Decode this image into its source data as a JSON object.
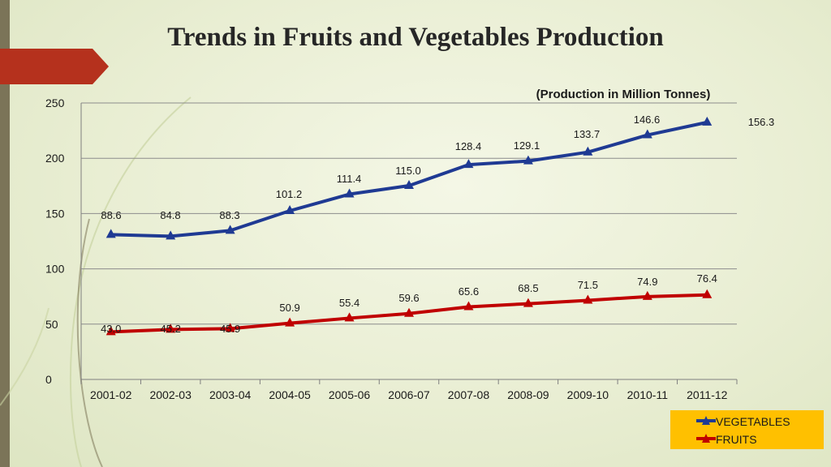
{
  "slide": {
    "title": "Trends in Fruits and Vegetables Production"
  },
  "colors": {
    "accent_tab": "#b5311d",
    "vegetables": "#1f3a93",
    "fruits": "#c00000",
    "legend_bg": "#ffc000"
  },
  "chart_data": {
    "type": "line",
    "title": "",
    "subtitle": "(Production in Million Tonnes)",
    "xlabel": "",
    "ylabel": "",
    "categories": [
      "2001-02",
      "2002-03",
      "2003-04",
      "2004-05",
      "2005-06",
      "2006-07",
      "2007-08",
      "2008-09",
      "2009-10",
      "2010-11",
      "2011-12"
    ],
    "ylim": [
      0,
      250
    ],
    "yticks": [
      "0",
      "50",
      "100",
      "150",
      "200",
      "250"
    ],
    "grid": true,
    "legend_position": "bottom-right",
    "series": [
      {
        "name": "VEGETABLES",
        "values": [
          131.0,
          129.5,
          134.6,
          152.5,
          167.5,
          175.2,
          194.2,
          197.5,
          205.5,
          221.0,
          232.5
        ],
        "labels": [
          "88.6",
          "84.8",
          "88.3",
          "101.2",
          "111.4",
          "115.0",
          "128.4",
          "129.1",
          "133.7",
          "146.6",
          "156.3"
        ],
        "marker": "triangle"
      },
      {
        "name": "FRUITS",
        "values": [
          43.0,
          45.2,
          45.9,
          50.9,
          55.4,
          59.6,
          65.6,
          68.5,
          71.5,
          74.9,
          76.4
        ],
        "labels": [
          "43.0",
          "45.2",
          "45.9",
          "50.9",
          "55.4",
          "59.6",
          "65.6",
          "68.5",
          "71.5",
          "74.9",
          "76.4"
        ],
        "marker": "triangle"
      }
    ]
  }
}
